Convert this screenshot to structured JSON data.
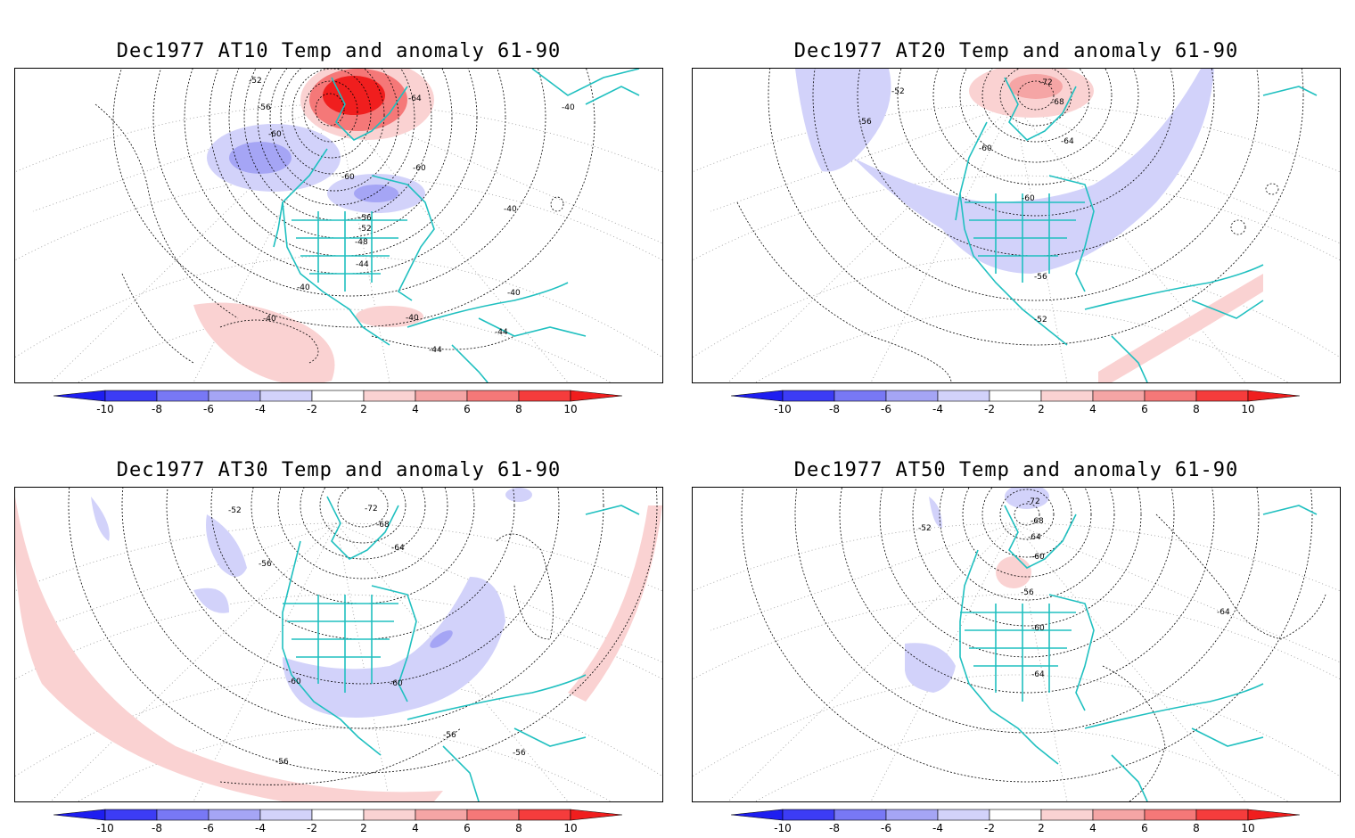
{
  "panels": [
    {
      "title": "Dec1977 AT10 Temp and anomaly 61-90",
      "contour_labels": [
        "-52",
        "-56",
        "-60",
        "-64",
        "-40",
        "-60",
        "-60",
        "-56",
        "-52",
        "-48",
        "-44",
        "-40",
        "-40",
        "-40",
        "-40",
        "-40",
        "-44",
        "-44"
      ]
    },
    {
      "title": "Dec1977 AT20 Temp and anomaly 61-90",
      "contour_labels": [
        "-72",
        "-52",
        "-68",
        "-56",
        "-60",
        "-64",
        "-60",
        "-56",
        "-52"
      ]
    },
    {
      "title": "Dec1977 AT30 Temp and anomaly 61-90",
      "contour_labels": [
        "-52",
        "-72",
        "-68",
        "-64",
        "-56",
        "-60",
        "-60",
        "-56",
        "-56",
        "-56"
      ]
    },
    {
      "title": "Dec1977 AT50 Temp and anomaly 61-90",
      "contour_labels": [
        "-72",
        "-52",
        "-68",
        "-64",
        "-60",
        "-56",
        "-64",
        "-60",
        "-64"
      ]
    }
  ],
  "colorbar": {
    "labels": [
      "-10",
      "-8",
      "-6",
      "-4",
      "-2",
      "2",
      "4",
      "6",
      "8",
      "10"
    ],
    "colors": [
      "#1e1ef0",
      "#3c3cf5",
      "#7878f5",
      "#a5a5f5",
      "#d2d2fa",
      "#ffffff",
      "#fad2d2",
      "#f5a5a5",
      "#f57878",
      "#f53c3c",
      "#f01e1e"
    ]
  }
}
